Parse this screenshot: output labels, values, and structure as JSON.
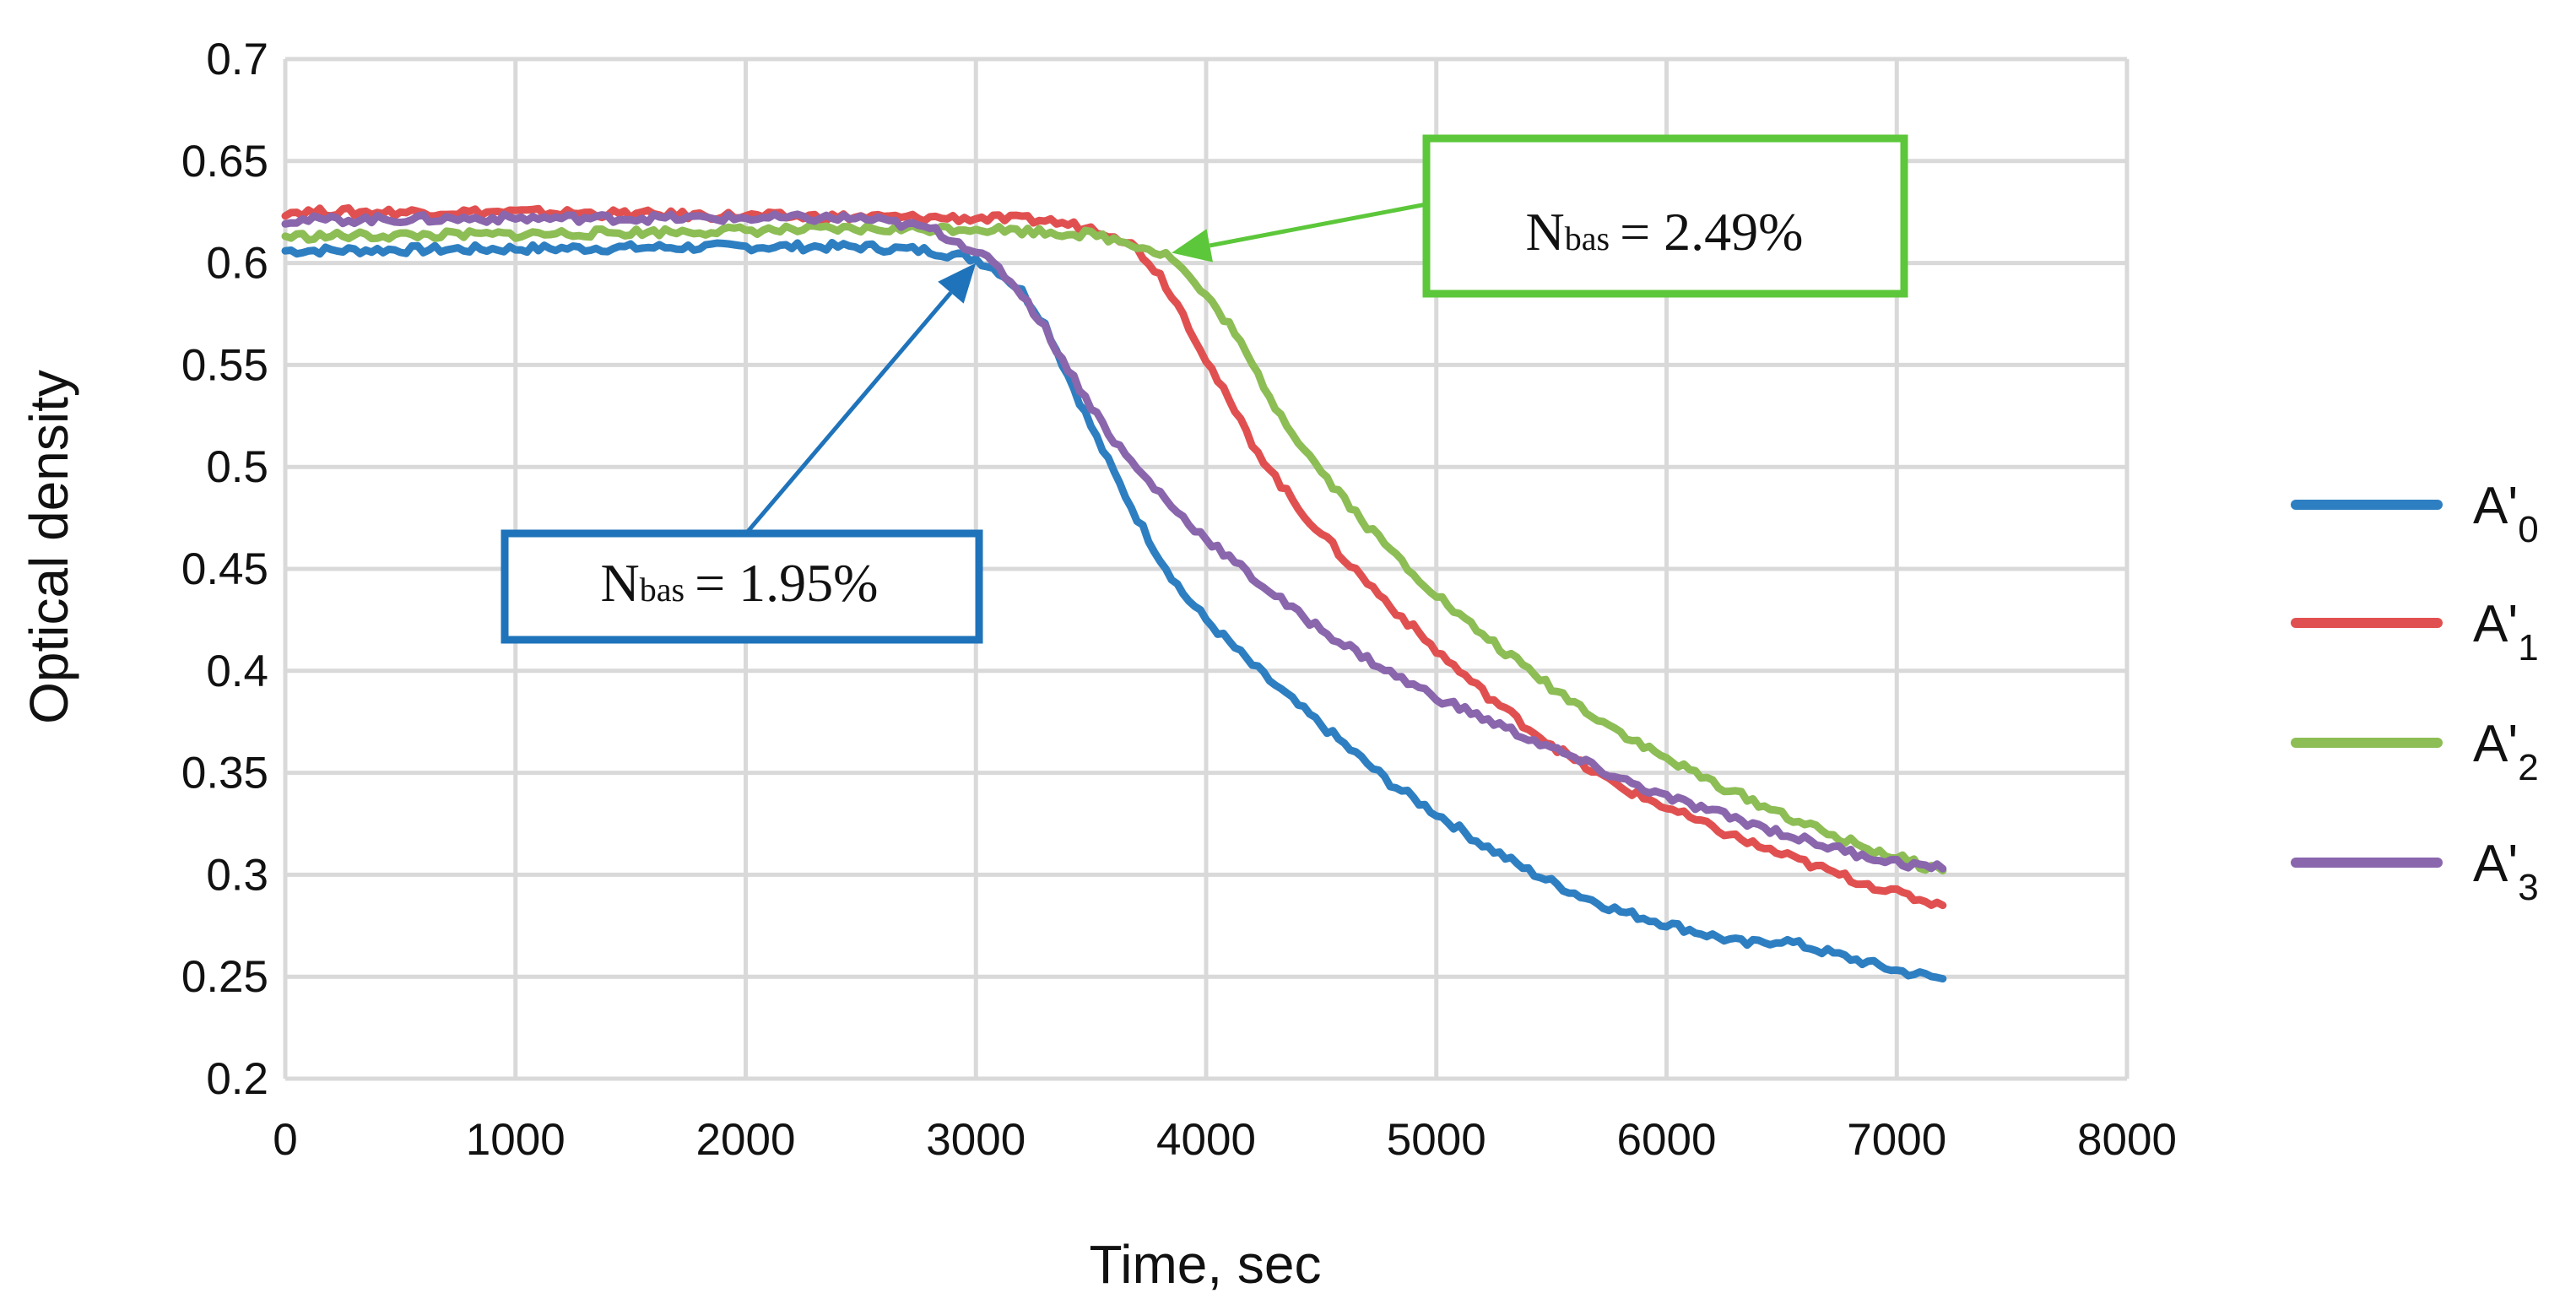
{
  "chart_data": {
    "type": "line",
    "xlabel": "Time, sec",
    "ylabel": "Optical density",
    "xlim": [
      0,
      8000
    ],
    "ylim": [
      0.2,
      0.7
    ],
    "xticks": [
      "0",
      "1000",
      "2000",
      "3000",
      "4000",
      "5000",
      "6000",
      "7000",
      "8000"
    ],
    "yticks": [
      "0.2",
      "0.25",
      "0.3",
      "0.35",
      "0.4",
      "0.45",
      "0.5",
      "0.55",
      "0.6",
      "0.65",
      "0.7"
    ],
    "grid": true,
    "legend_position": "right",
    "series": [
      {
        "name": "A'",
        "subscript": "0",
        "color": "#2e7fc1",
        "points": [
          [
            0,
            0.606
          ],
          [
            1000,
            0.607
          ],
          [
            2000,
            0.608
          ],
          [
            2500,
            0.608
          ],
          [
            2800,
            0.606
          ],
          [
            3000,
            0.602
          ],
          [
            3100,
            0.596
          ],
          [
            3200,
            0.586
          ],
          [
            3300,
            0.57
          ],
          [
            3400,
            0.545
          ],
          [
            3500,
            0.52
          ],
          [
            3600,
            0.497
          ],
          [
            3700,
            0.475
          ],
          [
            3800,
            0.455
          ],
          [
            3900,
            0.438
          ],
          [
            4000,
            0.425
          ],
          [
            4200,
            0.403
          ],
          [
            4400,
            0.383
          ],
          [
            4600,
            0.364
          ],
          [
            4800,
            0.345
          ],
          [
            5000,
            0.33
          ],
          [
            5200,
            0.315
          ],
          [
            5400,
            0.302
          ],
          [
            5600,
            0.291
          ],
          [
            5800,
            0.282
          ],
          [
            6000,
            0.276
          ],
          [
            6200,
            0.27
          ],
          [
            6350,
            0.266
          ],
          [
            6500,
            0.268
          ],
          [
            6600,
            0.265
          ],
          [
            6800,
            0.259
          ],
          [
            7000,
            0.253
          ],
          [
            7200,
            0.249
          ]
        ]
      },
      {
        "name": "A'",
        "subscript": "1",
        "color": "#e15050",
        "points": [
          [
            0,
            0.625
          ],
          [
            1000,
            0.625
          ],
          [
            2000,
            0.623
          ],
          [
            3000,
            0.622
          ],
          [
            3300,
            0.621
          ],
          [
            3500,
            0.617
          ],
          [
            3600,
            0.614
          ],
          [
            3700,
            0.607
          ],
          [
            3800,
            0.594
          ],
          [
            3900,
            0.575
          ],
          [
            4000,
            0.553
          ],
          [
            4100,
            0.532
          ],
          [
            4200,
            0.512
          ],
          [
            4300,
            0.495
          ],
          [
            4400,
            0.48
          ],
          [
            4600,
            0.455
          ],
          [
            4800,
            0.432
          ],
          [
            5000,
            0.41
          ],
          [
            5200,
            0.39
          ],
          [
            5400,
            0.372
          ],
          [
            5600,
            0.356
          ],
          [
            5800,
            0.343
          ],
          [
            6000,
            0.333
          ],
          [
            6200,
            0.323
          ],
          [
            6400,
            0.314
          ],
          [
            6600,
            0.306
          ],
          [
            6800,
            0.298
          ],
          [
            7000,
            0.291
          ],
          [
            7200,
            0.285
          ]
        ]
      },
      {
        "name": "A'",
        "subscript": "2",
        "color": "#8dbd55",
        "points": [
          [
            0,
            0.613
          ],
          [
            1000,
            0.614
          ],
          [
            2000,
            0.616
          ],
          [
            3000,
            0.617
          ],
          [
            3500,
            0.614
          ],
          [
            3700,
            0.609
          ],
          [
            3850,
            0.603
          ],
          [
            3950,
            0.59
          ],
          [
            4100,
            0.57
          ],
          [
            4200,
            0.55
          ],
          [
            4300,
            0.53
          ],
          [
            4400,
            0.513
          ],
          [
            4500,
            0.498
          ],
          [
            4700,
            0.471
          ],
          [
            4900,
            0.448
          ],
          [
            5100,
            0.427
          ],
          [
            5300,
            0.409
          ],
          [
            5500,
            0.392
          ],
          [
            5700,
            0.377
          ],
          [
            5900,
            0.363
          ],
          [
            6100,
            0.351
          ],
          [
            6300,
            0.34
          ],
          [
            6500,
            0.33
          ],
          [
            6700,
            0.32
          ],
          [
            6900,
            0.312
          ],
          [
            7100,
            0.305
          ],
          [
            7200,
            0.302
          ]
        ]
      },
      {
        "name": "A'",
        "subscript": "3",
        "color": "#8a66ad",
        "points": [
          [
            0,
            0.621
          ],
          [
            1000,
            0.622
          ],
          [
            2000,
            0.622
          ],
          [
            2500,
            0.622
          ],
          [
            2800,
            0.617
          ],
          [
            3000,
            0.606
          ],
          [
            3100,
            0.597
          ],
          [
            3200,
            0.585
          ],
          [
            3300,
            0.568
          ],
          [
            3400,
            0.548
          ],
          [
            3500,
            0.53
          ],
          [
            3600,
            0.513
          ],
          [
            3700,
            0.499
          ],
          [
            3800,
            0.487
          ],
          [
            3900,
            0.475
          ],
          [
            4000,
            0.465
          ],
          [
            4200,
            0.446
          ],
          [
            4400,
            0.428
          ],
          [
            4600,
            0.413
          ],
          [
            4800,
            0.399
          ],
          [
            5000,
            0.387
          ],
          [
            5200,
            0.377
          ],
          [
            5400,
            0.367
          ],
          [
            5600,
            0.357
          ],
          [
            5800,
            0.347
          ],
          [
            6000,
            0.338
          ],
          [
            6200,
            0.331
          ],
          [
            6400,
            0.324
          ],
          [
            6600,
            0.317
          ],
          [
            6800,
            0.311
          ],
          [
            7000,
            0.306
          ],
          [
            7200,
            0.303
          ]
        ]
      }
    ],
    "annotations": [
      {
        "name": "N",
        "subscript": "bas",
        "value": "= 1.95%",
        "color": "#1f73ba",
        "target": [
          3000,
          0.6
        ]
      },
      {
        "name": "N",
        "subscript": "bas",
        "value": "= 2.49%",
        "color": "#5cc73a",
        "target": [
          3850,
          0.605
        ]
      }
    ]
  }
}
